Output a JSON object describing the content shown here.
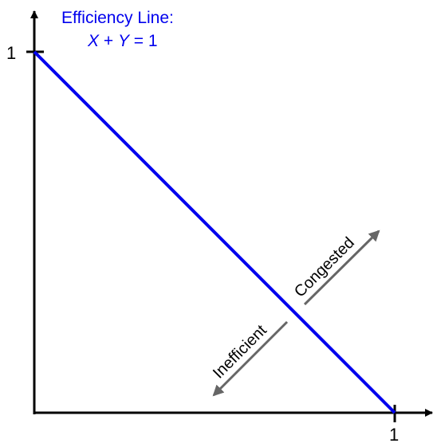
{
  "diagram": {
    "efficiency_line": {
      "title": "Efficiency Line:",
      "equation": "X + Y = 1",
      "color": "#0000ee"
    },
    "axes": {
      "x_tick_label": "1",
      "y_tick_label": "1",
      "color": "#000000"
    },
    "arrows": {
      "congested_label": "Congested",
      "inefficient_label": "Inefficient",
      "color": "#666666"
    }
  }
}
